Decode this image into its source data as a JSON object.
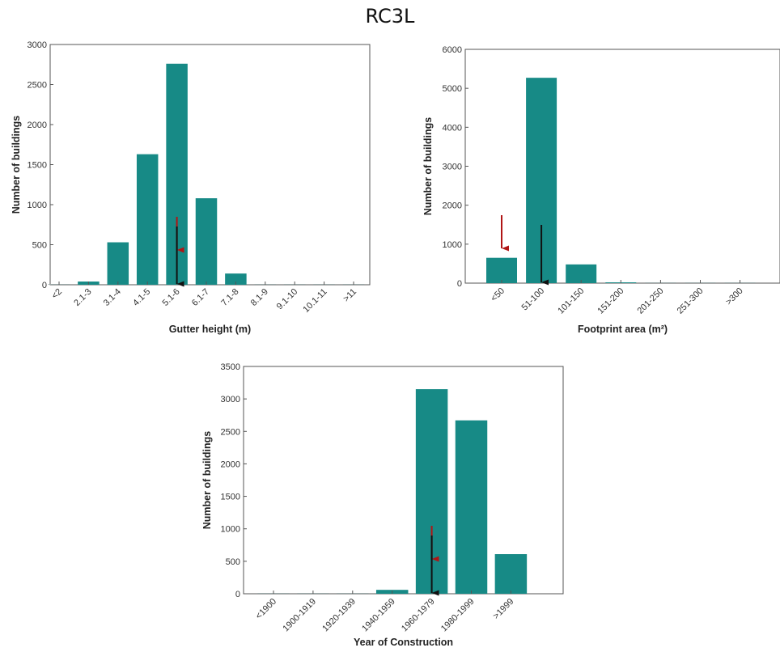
{
  "page_title": "RC3L",
  "colors": {
    "bar": "#178a86",
    "marker_red": "#b01515",
    "marker_black": "#111111",
    "axis": "#555555"
  },
  "chart_data": [
    {
      "type": "bar",
      "title": "",
      "xlabel": "Gutter height (m)",
      "ylabel": "Number of buildings",
      "ylim": [
        0,
        3000
      ],
      "yticks": [
        0,
        500,
        1000,
        1500,
        2000,
        2500,
        3000
      ],
      "categories": [
        "<2",
        "2.1-3",
        "3.1-4",
        "4.1-5",
        "5.1-6",
        "6.1-7",
        "7.1-8",
        "8.1-9",
        "9.1-10",
        "10.1-11",
        ">11"
      ],
      "values": [
        0,
        40,
        530,
        1630,
        2760,
        1080,
        140,
        0,
        0,
        0,
        0
      ],
      "markers": [
        {
          "color": "red",
          "category": "5.1-6"
        },
        {
          "color": "black",
          "category": "5.1-6"
        }
      ],
      "grid": false
    },
    {
      "type": "bar",
      "title": "",
      "xlabel": "Footprint area (m²)",
      "ylabel": "Number of buildings",
      "ylim": [
        0,
        6000
      ],
      "yticks": [
        0,
        1000,
        2000,
        3000,
        4000,
        5000,
        6000
      ],
      "categories": [
        "<50",
        "51-100",
        "101-150",
        "151-200",
        "201-250",
        "251-300",
        ">300"
      ],
      "values": [
        650,
        5270,
        480,
        20,
        0,
        0,
        0
      ],
      "markers": [
        {
          "color": "red",
          "category": "<50"
        },
        {
          "color": "black",
          "category": "51-100"
        }
      ],
      "grid": false
    },
    {
      "type": "bar",
      "title": "",
      "xlabel": "Year of Construction",
      "ylabel": "Number of buildings",
      "ylim": [
        0,
        3500
      ],
      "yticks": [
        0,
        500,
        1000,
        1500,
        2000,
        2500,
        3000,
        3500
      ],
      "categories": [
        "<1900",
        "1900-1919",
        "1920-1939",
        "1940-1959",
        "1960-1979",
        "1980-1999",
        ">1999"
      ],
      "values": [
        0,
        0,
        0,
        60,
        3150,
        2670,
        610
      ],
      "markers": [
        {
          "color": "red",
          "category": "1960-1979"
        },
        {
          "color": "black",
          "category": "1960-1979"
        }
      ],
      "grid": false
    }
  ]
}
